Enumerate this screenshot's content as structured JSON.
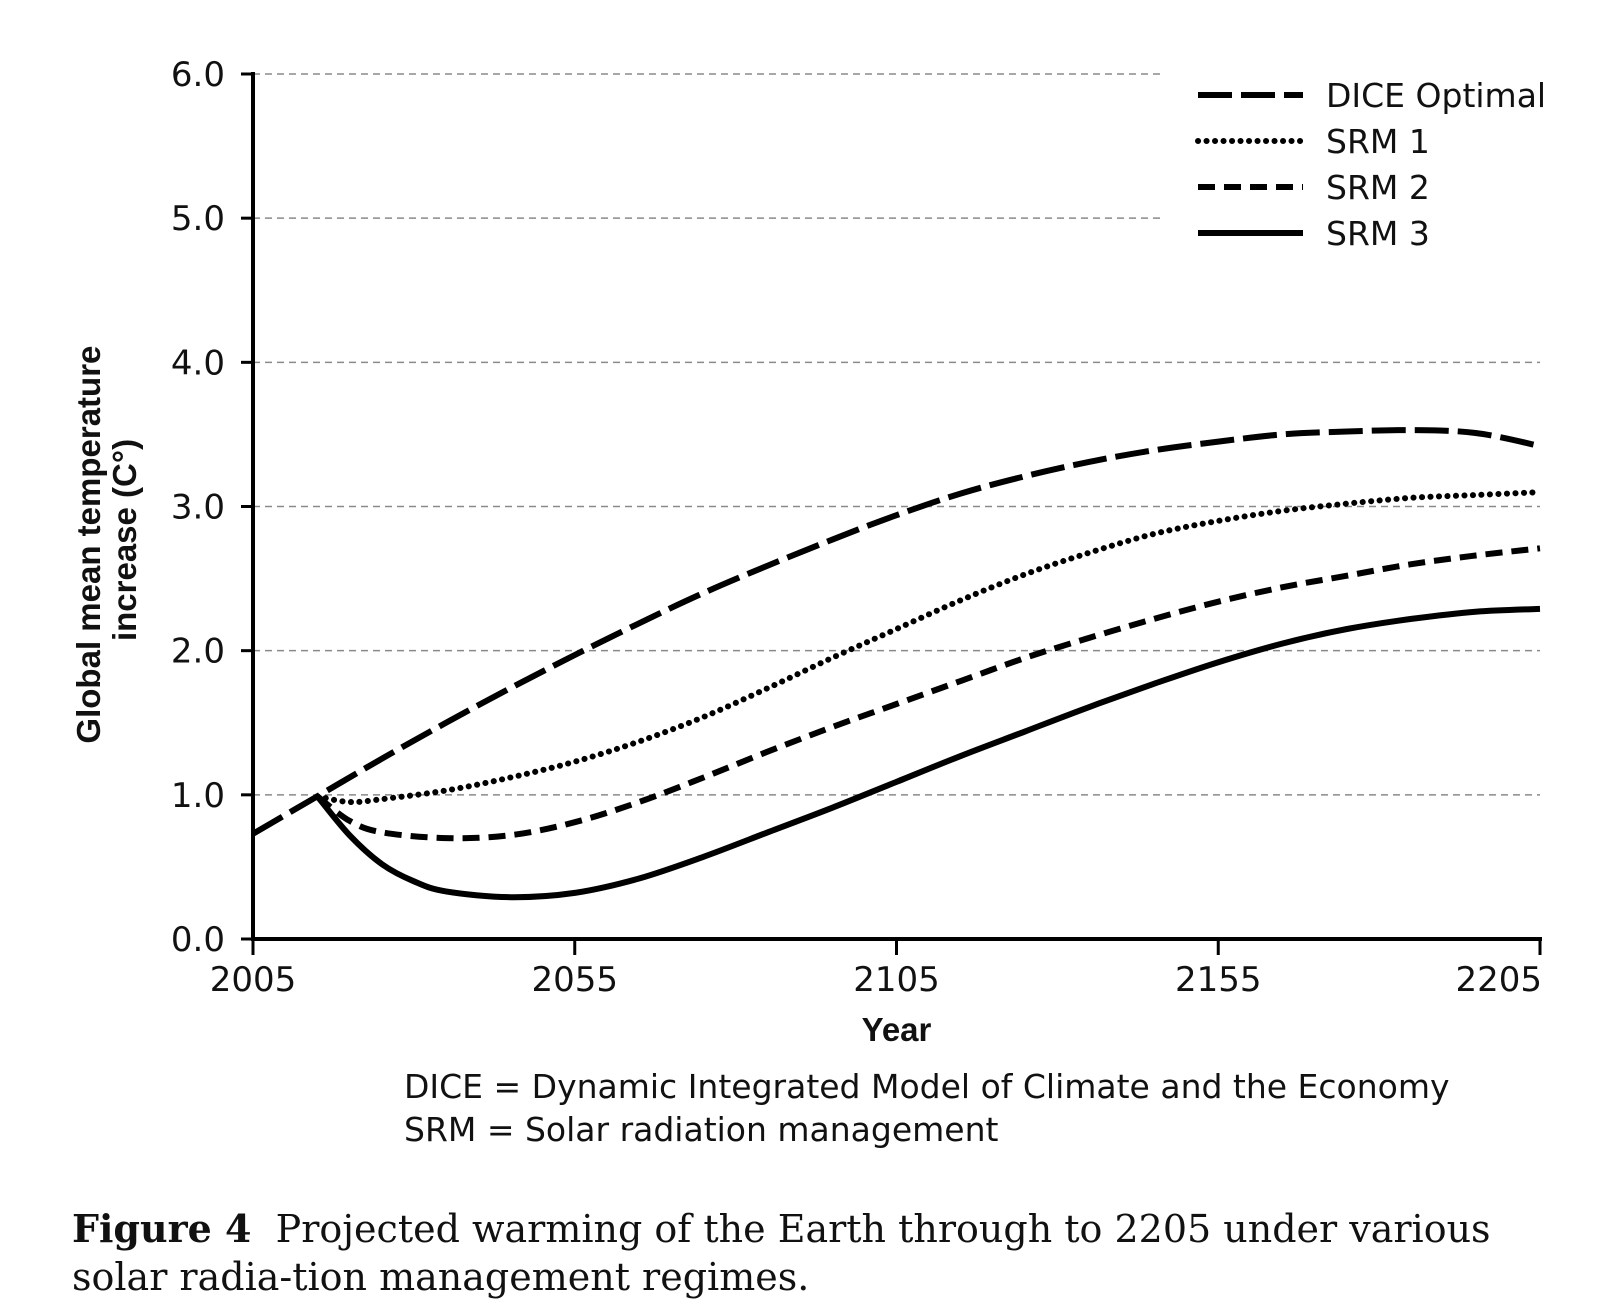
{
  "chart_data": {
    "type": "line",
    "xlabel": "Year",
    "ylabel": "Global mean temperature increase (C°)",
    "ylabel_lines": [
      "Global mean temperature",
      "increase (C°)"
    ],
    "xlim": [
      2005,
      2205
    ],
    "ylim": [
      0,
      6
    ],
    "x_ticks": [
      "2005",
      "2055",
      "2105",
      "2155",
      "2205"
    ],
    "y_ticks": [
      "0.0",
      "1.0",
      "2.0",
      "3.0",
      "4.0",
      "5.0",
      "6.0"
    ],
    "grid": "horizontal dashed",
    "legend_position": "top-right",
    "series": [
      {
        "name": "DICE Optimal",
        "style": "long-dash",
        "x": [
          2005,
          2015,
          2025,
          2035,
          2045,
          2055,
          2065,
          2075,
          2085,
          2095,
          2105,
          2115,
          2125,
          2135,
          2145,
          2155,
          2165,
          2175,
          2185,
          2195,
          2205
        ],
        "values": [
          0.73,
          0.99,
          1.25,
          1.5,
          1.74,
          1.97,
          2.19,
          2.4,
          2.59,
          2.77,
          2.94,
          3.09,
          3.21,
          3.31,
          3.39,
          3.45,
          3.5,
          3.52,
          3.53,
          3.51,
          3.42
        ]
      },
      {
        "name": "SRM 1",
        "style": "dotted",
        "x": [
          2015,
          2020,
          2025,
          2035,
          2045,
          2055,
          2065,
          2075,
          2085,
          2095,
          2105,
          2115,
          2125,
          2135,
          2145,
          2155,
          2165,
          2175,
          2185,
          2195,
          2205
        ],
        "values": [
          0.99,
          0.95,
          0.97,
          1.03,
          1.12,
          1.23,
          1.37,
          1.54,
          1.74,
          1.95,
          2.15,
          2.35,
          2.53,
          2.68,
          2.81,
          2.9,
          2.97,
          3.02,
          3.06,
          3.08,
          3.1
        ]
      },
      {
        "name": "SRM 2",
        "style": "short-dash",
        "x": [
          2015,
          2020,
          2025,
          2035,
          2045,
          2055,
          2065,
          2075,
          2085,
          2095,
          2105,
          2115,
          2125,
          2135,
          2145,
          2155,
          2165,
          2175,
          2185,
          2195,
          2205
        ],
        "values": [
          0.99,
          0.82,
          0.74,
          0.7,
          0.72,
          0.81,
          0.95,
          1.12,
          1.3,
          1.47,
          1.63,
          1.79,
          1.95,
          2.09,
          2.22,
          2.34,
          2.44,
          2.52,
          2.6,
          2.66,
          2.71
        ]
      },
      {
        "name": "SRM 3",
        "style": "solid",
        "x": [
          2015,
          2020,
          2025,
          2030,
          2035,
          2045,
          2055,
          2065,
          2075,
          2085,
          2095,
          2105,
          2115,
          2125,
          2135,
          2145,
          2155,
          2165,
          2175,
          2185,
          2195,
          2205
        ],
        "values": [
          0.99,
          0.72,
          0.52,
          0.4,
          0.33,
          0.29,
          0.32,
          0.42,
          0.57,
          0.74,
          0.91,
          1.09,
          1.27,
          1.44,
          1.61,
          1.77,
          1.92,
          2.05,
          2.15,
          2.22,
          2.27,
          2.29
        ]
      }
    ]
  },
  "notes": [
    "DICE = Dynamic Integrated Model of Climate and the Economy",
    "SRM = Solar radiation management"
  ],
  "caption": {
    "label": "Figure 4",
    "text": "Projected warming of the Earth through to 2205 under various solar radia-tion management regimes."
  }
}
